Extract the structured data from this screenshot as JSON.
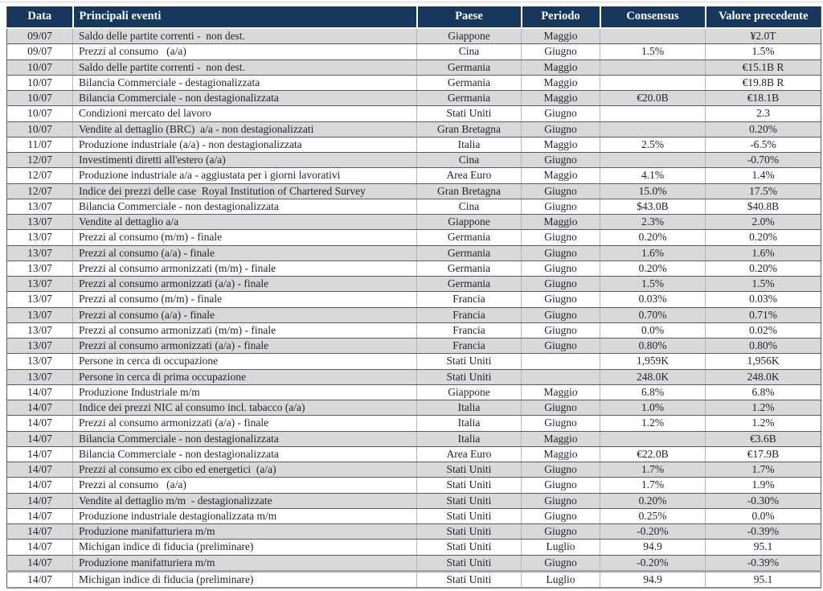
{
  "colors": {
    "header_bg": "#17375d",
    "header_text": "#ffffff",
    "row_alt_bg": "#d9d9d9",
    "row_bg": "#ffffff",
    "body_text": "#24242c",
    "row_border": "#5a5a62",
    "column_border": "#b4b4ba"
  },
  "table": {
    "columns": [
      {
        "key": "date",
        "label": "Data"
      },
      {
        "key": "event",
        "label": "Principali eventi"
      },
      {
        "key": "country",
        "label": "Paese"
      },
      {
        "key": "period",
        "label": "Periodo"
      },
      {
        "key": "consensus",
        "label": "Consensus"
      },
      {
        "key": "previous",
        "label": "Valore precedente"
      }
    ],
    "rows": [
      {
        "date": "09/07",
        "event": "Saldo delle partite correnti -  non dest.",
        "country": "Giappone",
        "period": "Maggio",
        "consensus": "",
        "previous": "¥2.0T"
      },
      {
        "date": "09/07",
        "event": "Prezzi al consumo   (a/a)",
        "country": "Cina",
        "period": "Giugno",
        "consensus": "1.5%",
        "previous": "1.5%"
      },
      {
        "date": "10/07",
        "event": "Saldo delle partite correnti -  non dest.",
        "country": "Germania",
        "period": "Maggio",
        "consensus": "",
        "previous": "€15.1B R"
      },
      {
        "date": "10/07",
        "event": "Bilancia Commerciale - destagionalizzata",
        "country": "Germania",
        "period": "Maggio",
        "consensus": "",
        "previous": "€19.8B R"
      },
      {
        "date": "10/07",
        "event": "Bilancia Commerciale - non destagionalizzata",
        "country": "Germania",
        "period": "Maggio",
        "consensus": "€20.0B",
        "previous": "€18.1B"
      },
      {
        "date": "10/07",
        "event": "Condizioni mercato del lavoro",
        "country": "Stati Uniti",
        "period": "Giugno",
        "consensus": "",
        "previous": "2.3"
      },
      {
        "date": "10/07",
        "event": "Vendite al dettaglio (BRC)  a/a - non destagionalizzati",
        "country": "Gran Bretagna",
        "period": "Giugno",
        "consensus": "",
        "previous": "0.20%"
      },
      {
        "date": "11/07",
        "event": "Produzione industriale (a/a) - non destagionalizzata",
        "country": "Italia",
        "period": "Maggio",
        "consensus": "2.5%",
        "previous": "-6.5%"
      },
      {
        "date": "12/07",
        "event": "Investimenti diretti all'estero (a/a)",
        "country": "Cina",
        "period": "Giugno",
        "consensus": "",
        "previous": "-0.70%"
      },
      {
        "date": "12/07",
        "event": "Produzione industriale a/a - aggiustata per i giorni lavorativi",
        "country": "Area Euro",
        "period": "Maggio",
        "consensus": "4.1%",
        "previous": "1.4%"
      },
      {
        "date": "12/07",
        "event": "Indice dei prezzi delle case  Royal Institution of Chartered Survey",
        "country": "Gran Bretagna",
        "period": "Giugno",
        "consensus": "15.0%",
        "previous": "17.5%"
      },
      {
        "date": "13/07",
        "event": "Bilancia Commerciale - non destagionalizzata",
        "country": "Cina",
        "period": "Giugno",
        "consensus": "$43.0B",
        "previous": "$40.8B"
      },
      {
        "date": "13/07",
        "event": "Vendite al dettaglio a/a",
        "country": "Giappone",
        "period": "Maggio",
        "consensus": "2.3%",
        "previous": "2.0%"
      },
      {
        "date": "13/07",
        "event": "Prezzi al consumo (m/m) - finale",
        "country": "Germania",
        "period": "Giugno",
        "consensus": "0.20%",
        "previous": "0.20%"
      },
      {
        "date": "13/07",
        "event": "Prezzi al consumo (a/a) - finale",
        "country": "Germania",
        "period": "Giugno",
        "consensus": "1.6%",
        "previous": "1.6%"
      },
      {
        "date": "13/07",
        "event": "Prezzi al consumo armonizzati (m/m) - finale",
        "country": "Germania",
        "period": "Giugno",
        "consensus": "0.20%",
        "previous": "0.20%"
      },
      {
        "date": "13/07",
        "event": "Prezzi al consumo armonizzati (a/a) - finale",
        "country": "Germania",
        "period": "Giugno",
        "consensus": "1.5%",
        "previous": "1.5%"
      },
      {
        "date": "13/07",
        "event": "Prezzi al consumo (m/m) - finale",
        "country": "Francia",
        "period": "Giugno",
        "consensus": "0.03%",
        "previous": "0.03%"
      },
      {
        "date": "13/07",
        "event": "Prezzi al consumo (a/a) - finale",
        "country": "Francia",
        "period": "Giugno",
        "consensus": "0.70%",
        "previous": "0.71%"
      },
      {
        "date": "13/07",
        "event": "Prezzi al consumo armonizzati (m/m) - finale",
        "country": "Francia",
        "period": "Giugno",
        "consensus": "0.0%",
        "previous": "0.02%"
      },
      {
        "date": "13/07",
        "event": "Prezzi al consumo armonizzati (a/a) - finale",
        "country": "Francia",
        "period": "Giugno",
        "consensus": "0.80%",
        "previous": "0.80%"
      },
      {
        "date": "13/07",
        "event": "Persone in cerca di occupazione",
        "country": "Stati Uniti",
        "period": "",
        "consensus": "1,959K",
        "previous": "1,956K"
      },
      {
        "date": "13/07",
        "event": "Persone in cerca di prima occupazione",
        "country": "Stati Uniti",
        "period": "",
        "consensus": "248.0K",
        "previous": "248.0K"
      },
      {
        "date": "14/07",
        "event": "Produzione Industriale m/m",
        "country": "Giappone",
        "period": "Maggio",
        "consensus": "6.8%",
        "previous": "6.8%"
      },
      {
        "date": "14/07",
        "event": "Indice dei prezzi NIC al consumo incl. tabacco (a/a)",
        "country": "Italia",
        "period": "Giugno",
        "consensus": "1.0%",
        "previous": "1.2%"
      },
      {
        "date": "14/07",
        "event": "Prezzi al consumo armonizzati (a/a) - finale",
        "country": "Italia",
        "period": "Giugno",
        "consensus": "1.2%",
        "previous": "1.2%"
      },
      {
        "date": "14/07",
        "event": "Bilancia Commerciale - non destagionalizzata",
        "country": "Italia",
        "period": "Maggio",
        "consensus": "",
        "previous": "€3.6B"
      },
      {
        "date": "14/07",
        "event": "Bilancia Commerciale - non destagionalizzata",
        "country": "Area Euro",
        "period": "Maggio",
        "consensus": "€22.0B",
        "previous": "€17.9B"
      },
      {
        "date": "14/07",
        "event": "Prezzi al consumo ex cibo ed energetici  (a/a)",
        "country": "Stati Uniti",
        "period": "Giugno",
        "consensus": "1.7%",
        "previous": "1.7%"
      },
      {
        "date": "14/07",
        "event": "Prezzi al consumo   (a/a)",
        "country": "Stati Uniti",
        "period": "Giugno",
        "consensus": "1.7%",
        "previous": "1.9%"
      },
      {
        "date": "14/07",
        "event": "Vendite al dettaglio m/m  - destagionalizzate",
        "country": "Stati Uniti",
        "period": "Giugno",
        "consensus": "0.20%",
        "previous": "-0.30%"
      },
      {
        "date": "14/07",
        "event": "Produzione industriale destagionalizzata m/m",
        "country": "Stati Uniti",
        "period": "Giugno",
        "consensus": "0.25%",
        "previous": "0.0%"
      },
      {
        "date": "14/07",
        "event": "Produzione manifatturiera m/m",
        "country": "Stati Uniti",
        "period": "Giugno",
        "consensus": "-0.20%",
        "previous": "-0.39%"
      },
      {
        "date": "14/07",
        "event": "Michigan indice di fiducia (preliminare)",
        "country": "Stati Uniti",
        "period": "Luglio",
        "consensus": "94.9",
        "previous": "95.1"
      },
      {
        "date": "14/07",
        "event": "Produzione manifatturiera m/m",
        "country": "Stati Uniti",
        "period": "Giugno",
        "consensus": "-0.20%",
        "previous": "-0.39%"
      },
      {
        "date": "14/07",
        "event": "Michigan indice di fiducia (preliminare)",
        "country": "Stati Uniti",
        "period": "Luglio",
        "consensus": "94.9",
        "previous": "95.1"
      }
    ]
  }
}
